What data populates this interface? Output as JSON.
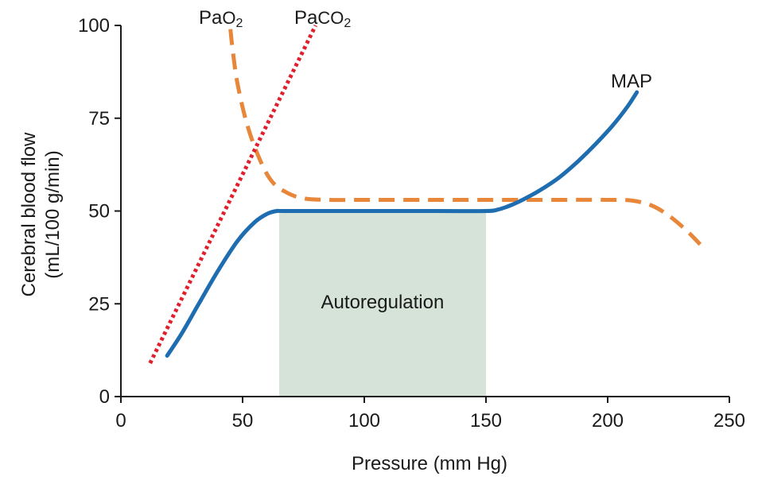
{
  "chart_data": {
    "type": "line",
    "xlabel": "Pressure (mm Hg)",
    "ylabel_lines": [
      "Cerebral blood flow",
      "(mL/100 g/min)"
    ],
    "xlim": [
      0,
      250
    ],
    "ylim": [
      0,
      100
    ],
    "x_ticks": [
      0,
      50,
      100,
      150,
      200,
      250
    ],
    "y_ticks": [
      0,
      25,
      50,
      75,
      100
    ],
    "grid": false,
    "shaded_region": {
      "label": "Autoregulation",
      "x": [
        65,
        150
      ],
      "y": [
        0,
        50
      ],
      "color": "#d5e3d8"
    },
    "series": [
      {
        "label_main": "Pa",
        "label_sub": "O",
        "label_tail": "2",
        "color": "#e8873a",
        "style": "dashed",
        "points": [
          [
            45,
            99
          ],
          [
            46,
            93
          ],
          [
            48,
            84
          ],
          [
            52,
            73
          ],
          [
            57,
            64
          ],
          [
            62,
            58
          ],
          [
            68,
            55
          ],
          [
            75,
            53.4
          ],
          [
            85,
            53
          ],
          [
            100,
            53
          ],
          [
            125,
            53
          ],
          [
            150,
            53
          ],
          [
            175,
            53
          ],
          [
            200,
            53
          ],
          [
            210,
            52.8
          ],
          [
            218,
            51.5
          ],
          [
            225,
            48.8
          ],
          [
            232,
            45
          ],
          [
            238,
            41
          ]
        ]
      },
      {
        "label_main": "Pa",
        "label_sub": "CO",
        "label_tail": "2",
        "color": "#e0202c",
        "style": "dotted",
        "points": [
          [
            12,
            9
          ],
          [
            80,
            100
          ]
        ]
      },
      {
        "label_main": "MAP",
        "label_sub": "",
        "label_tail": "",
        "color": "#1d6db0",
        "style": "solid",
        "points": [
          [
            19,
            11
          ],
          [
            25,
            17
          ],
          [
            32,
            25
          ],
          [
            40,
            34
          ],
          [
            48,
            42
          ],
          [
            55,
            47
          ],
          [
            60,
            49.2
          ],
          [
            64,
            50
          ],
          [
            68,
            50
          ],
          [
            100,
            50
          ],
          [
            130,
            50
          ],
          [
            150,
            50
          ],
          [
            155,
            50.4
          ],
          [
            160,
            51.5
          ],
          [
            165,
            53
          ],
          [
            172,
            55.5
          ],
          [
            180,
            59
          ],
          [
            188,
            63.5
          ],
          [
            195,
            68
          ],
          [
            202,
            73
          ],
          [
            208,
            78
          ],
          [
            212,
            82
          ]
        ]
      }
    ]
  }
}
